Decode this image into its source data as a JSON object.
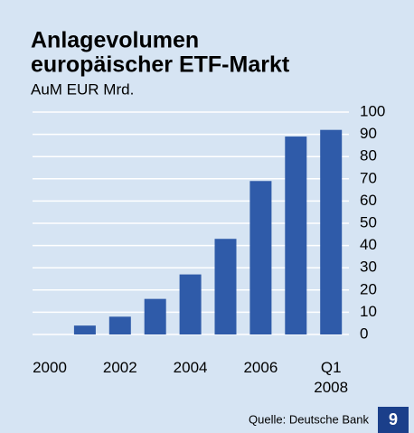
{
  "chart_data": {
    "type": "bar",
    "title_lines": [
      "Anlagevolumen",
      "europäischer ETF-Markt"
    ],
    "subtitle": "AuM EUR Mrd.",
    "categories": [
      "2000",
      null,
      "2002",
      null,
      "2004",
      null,
      "2006",
      null,
      "Q1\n2008"
    ],
    "values": [
      0,
      4,
      8,
      16,
      27,
      43,
      69,
      89,
      92
    ],
    "color": "#2f5ba9",
    "ylim": [
      0,
      100
    ],
    "yticks": [
      0,
      10,
      20,
      30,
      40,
      50,
      60,
      70,
      80,
      90,
      100
    ],
    "grid": true,
    "source": "Quelle: Deutsche Bank",
    "page_number": "9"
  }
}
